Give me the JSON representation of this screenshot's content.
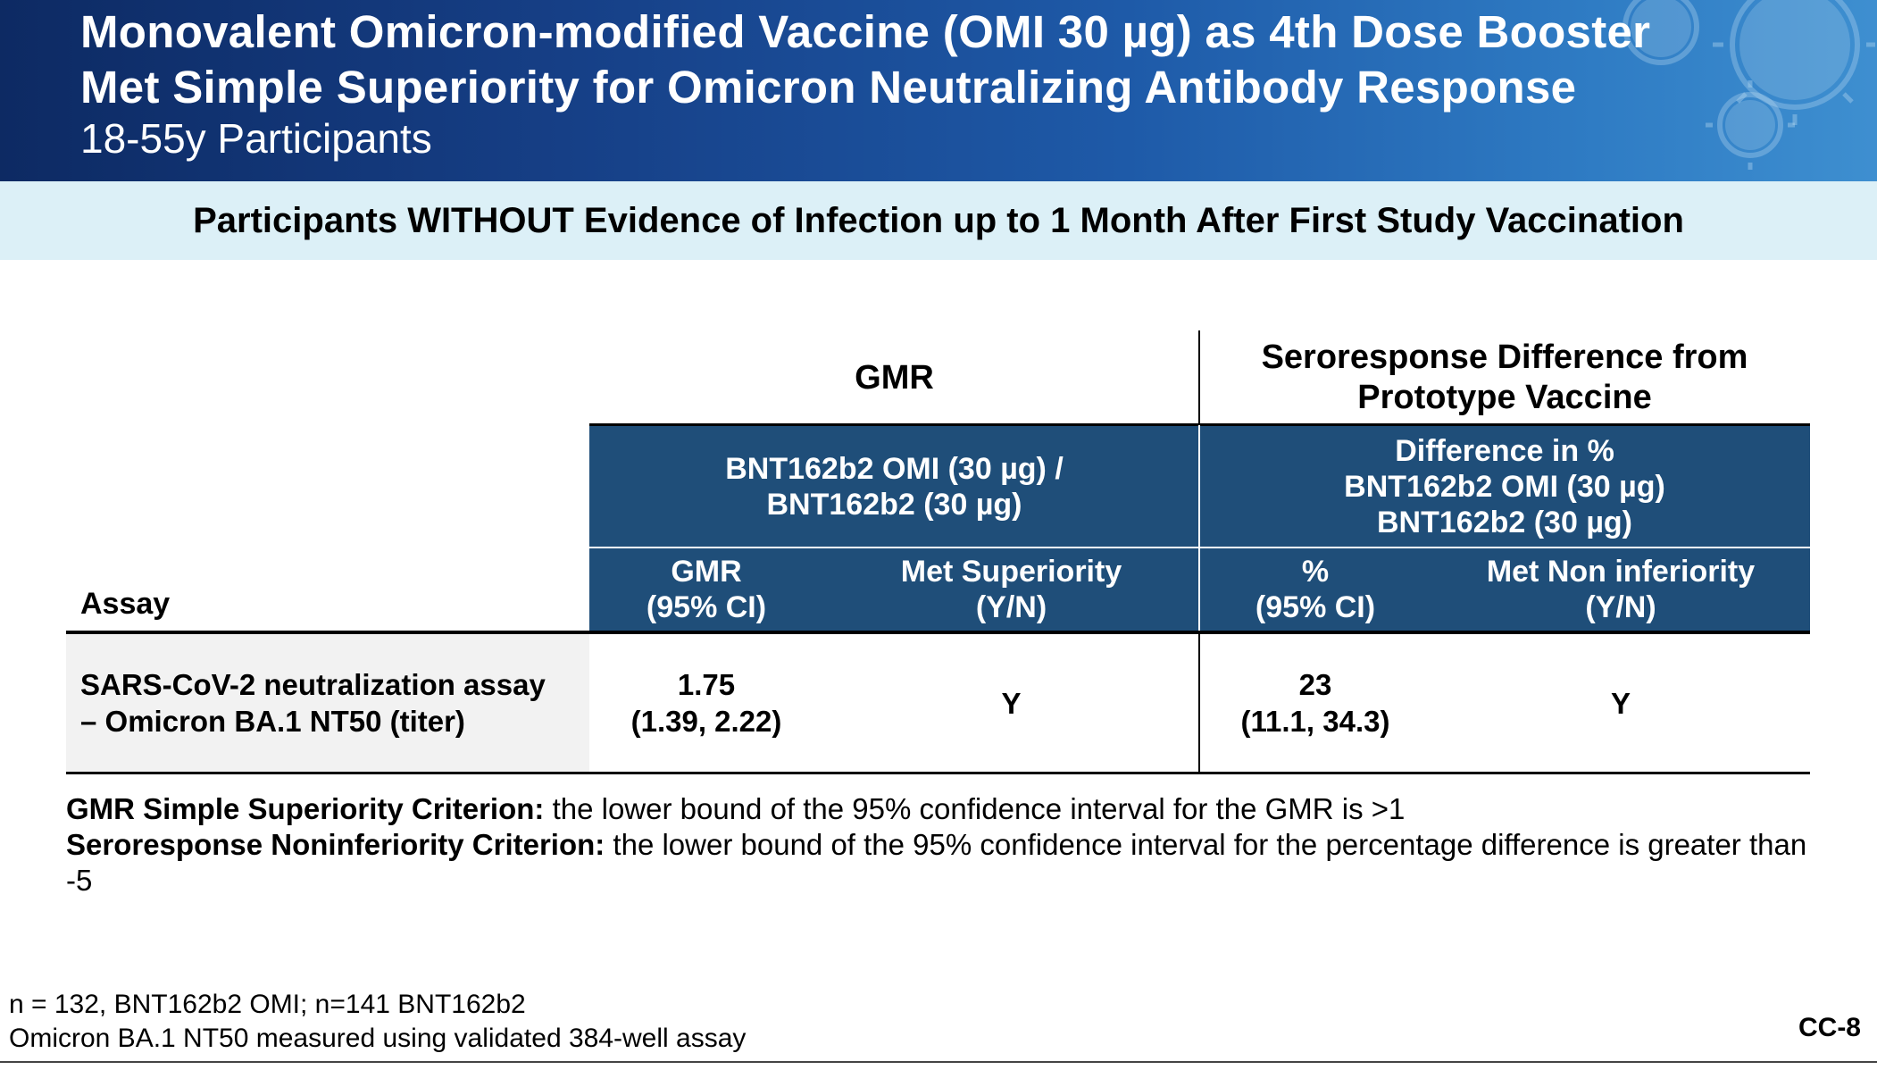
{
  "header": {
    "title_line1": "Monovalent Omicron-modified Vaccine (OMI 30 µg) as 4th Dose Booster",
    "title_line2": "Met Simple Superiority for Omicron Neutralizing Antibody Response",
    "subtitle": "18-55y Participants"
  },
  "band": {
    "text": "Participants WITHOUT Evidence of Infection up to 1 Month After First Study Vaccination"
  },
  "table": {
    "group_gmr": "GMR",
    "group_sero_line1": "Seroresponse Difference from",
    "group_sero_line2": "Prototype Vaccine",
    "gmr_comparison_line1": "BNT162b2 OMI (30 µg) /",
    "gmr_comparison_line2": "BNT162b2 (30 µg)",
    "sero_comparison_line1": "Difference in %",
    "sero_comparison_line2": "BNT162b2 OMI (30 µg)",
    "sero_comparison_line3": "BNT162b2 (30 µg)",
    "col_assay": "Assay",
    "col_gmr_line1": "GMR",
    "col_gmr_line2": "(95% CI)",
    "col_met_sup_line1": "Met Superiority",
    "col_met_sup_line2": "(Y/N)",
    "col_pct_line1": "%",
    "col_pct_line2": "(95% CI)",
    "col_met_noninf_line1": "Met Non inferiority",
    "col_met_noninf_line2": "(Y/N)",
    "row": {
      "assay_line1": "SARS-CoV-2 neutralization assay",
      "assay_line2": "– Omicron BA.1 NT50 (titer)",
      "gmr_value": "1.75",
      "gmr_ci": "(1.39, 2.22)",
      "met_superiority": "Y",
      "pct_value": "23",
      "pct_ci": "(11.1, 34.3)",
      "met_noninferiority": "Y"
    }
  },
  "criteria": {
    "gmr_label": "GMR Simple Superiority Criterion:",
    "gmr_text": " the lower bound of the 95% confidence interval for the GMR is >1",
    "sero_label": "Seroresponse Noninferiority Criterion:",
    "sero_text": " the lower bound of the 95% confidence interval for the percentage difference is greater than -5"
  },
  "footnotes": {
    "line1": "n = 132, BNT162b2 OMI; n=141 BNT162b2",
    "line2": "Omicron BA.1 NT50 measured using validated 384-well assay"
  },
  "page_number": "CC-8",
  "colors": {
    "header_dark": "#0d2a63",
    "header_light": "#3e8fd0",
    "band": "#dcf0f7",
    "table_blue": "#1f4e79",
    "assay_cell_bg": "#f2f2f2"
  }
}
